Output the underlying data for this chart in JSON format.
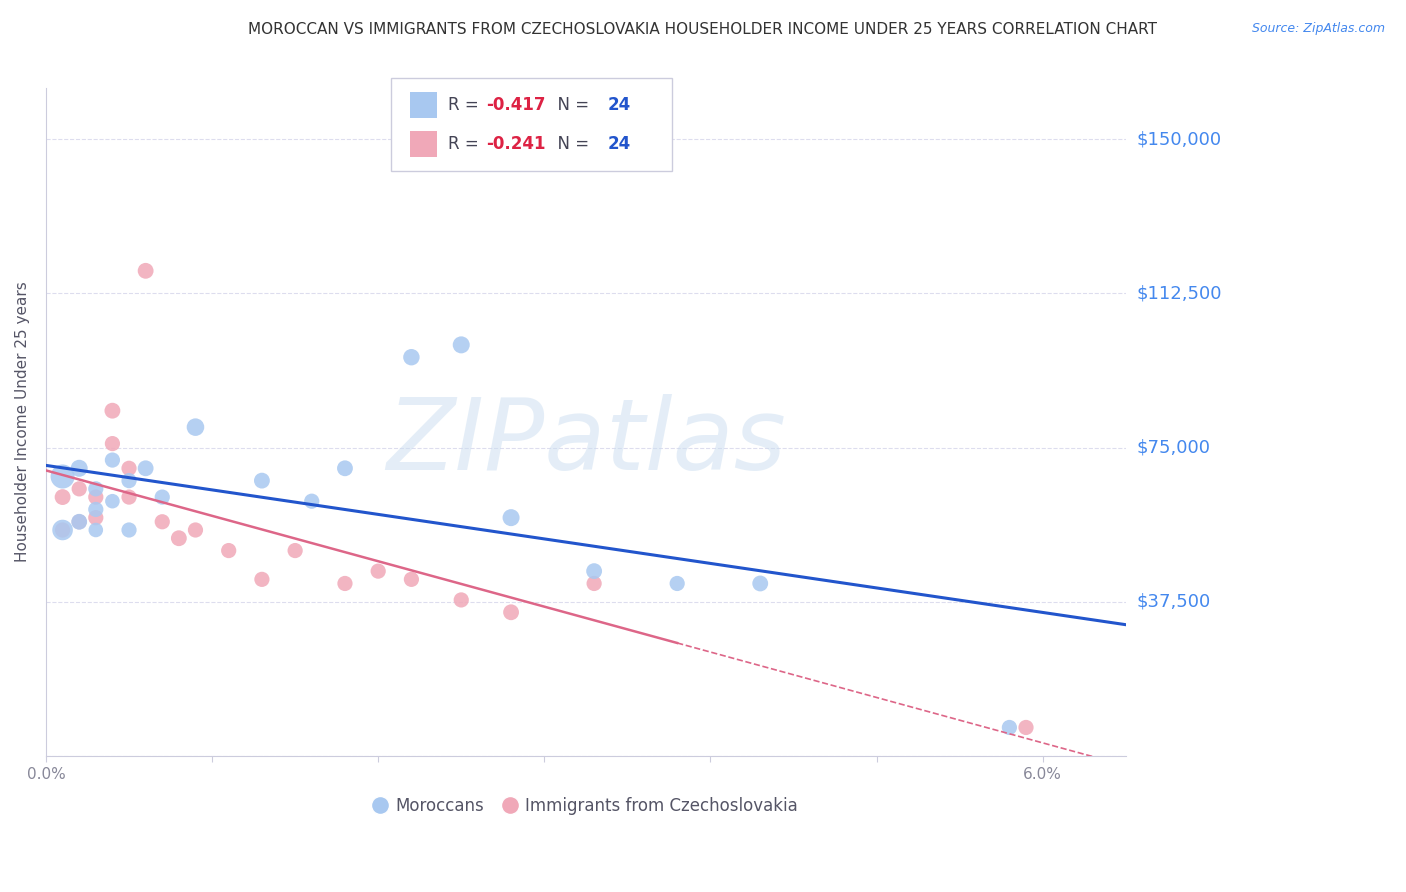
{
  "title": "MOROCCAN VS IMMIGRANTS FROM CZECHOSLOVAKIA HOUSEHOLDER INCOME UNDER 25 YEARS CORRELATION CHART",
  "source": "Source: ZipAtlas.com",
  "ylabel": "Householder Income Under 25 years",
  "watermark": "ZIPatlas",
  "xlim": [
    0.0,
    0.065
  ],
  "ylim": [
    0,
    162500
  ],
  "yticks": [
    0,
    37500,
    75000,
    112500,
    150000
  ],
  "ytick_labels": [
    "",
    "$37,500",
    "$75,000",
    "$112,500",
    "$150,000"
  ],
  "xticks": [
    0.0,
    0.01,
    0.02,
    0.03,
    0.04,
    0.05,
    0.06
  ],
  "xtick_labels": [
    "0.0%",
    "",
    "",
    "",
    "",
    "",
    "6.0%"
  ],
  "moroccan_R": -0.417,
  "moroccan_N": 24,
  "czech_R": -0.241,
  "czech_N": 24,
  "moroccan_color": "#A8C8F0",
  "czech_color": "#F0A8B8",
  "moroccan_line_color": "#2255CC",
  "czech_line_color": "#DD6688",
  "background_color": "#FFFFFF",
  "grid_color": "#DDDDEE",
  "title_color": "#333333",
  "right_label_color": "#4488EE",
  "legend_border_color": "#CCCCDD",
  "moroccan_x": [
    0.001,
    0.001,
    0.002,
    0.002,
    0.003,
    0.003,
    0.003,
    0.004,
    0.004,
    0.005,
    0.005,
    0.006,
    0.007,
    0.009,
    0.013,
    0.016,
    0.018,
    0.022,
    0.025,
    0.028,
    0.033,
    0.038,
    0.043,
    0.058
  ],
  "moroccan_y": [
    68000,
    55000,
    70000,
    57000,
    65000,
    60000,
    55000,
    72000,
    62000,
    67000,
    55000,
    70000,
    63000,
    80000,
    67000,
    62000,
    70000,
    97000,
    100000,
    58000,
    45000,
    42000,
    42000,
    7000
  ],
  "moroccan_size": [
    300,
    220,
    150,
    130,
    120,
    120,
    110,
    120,
    110,
    120,
    120,
    130,
    120,
    160,
    130,
    120,
    130,
    140,
    150,
    150,
    130,
    120,
    130,
    120
  ],
  "czech_x": [
    0.001,
    0.001,
    0.002,
    0.002,
    0.003,
    0.003,
    0.004,
    0.004,
    0.005,
    0.005,
    0.006,
    0.007,
    0.008,
    0.009,
    0.011,
    0.013,
    0.015,
    0.018,
    0.02,
    0.022,
    0.025,
    0.028,
    0.033,
    0.059
  ],
  "czech_y": [
    63000,
    55000,
    57000,
    65000,
    58000,
    63000,
    84000,
    76000,
    70000,
    63000,
    118000,
    57000,
    53000,
    55000,
    50000,
    43000,
    50000,
    42000,
    45000,
    43000,
    38000,
    35000,
    42000,
    7000
  ],
  "czech_size": [
    130,
    120,
    120,
    120,
    120,
    120,
    130,
    120,
    120,
    120,
    130,
    120,
    130,
    120,
    120,
    120,
    120,
    120,
    120,
    120,
    120,
    130,
    120,
    120
  ]
}
